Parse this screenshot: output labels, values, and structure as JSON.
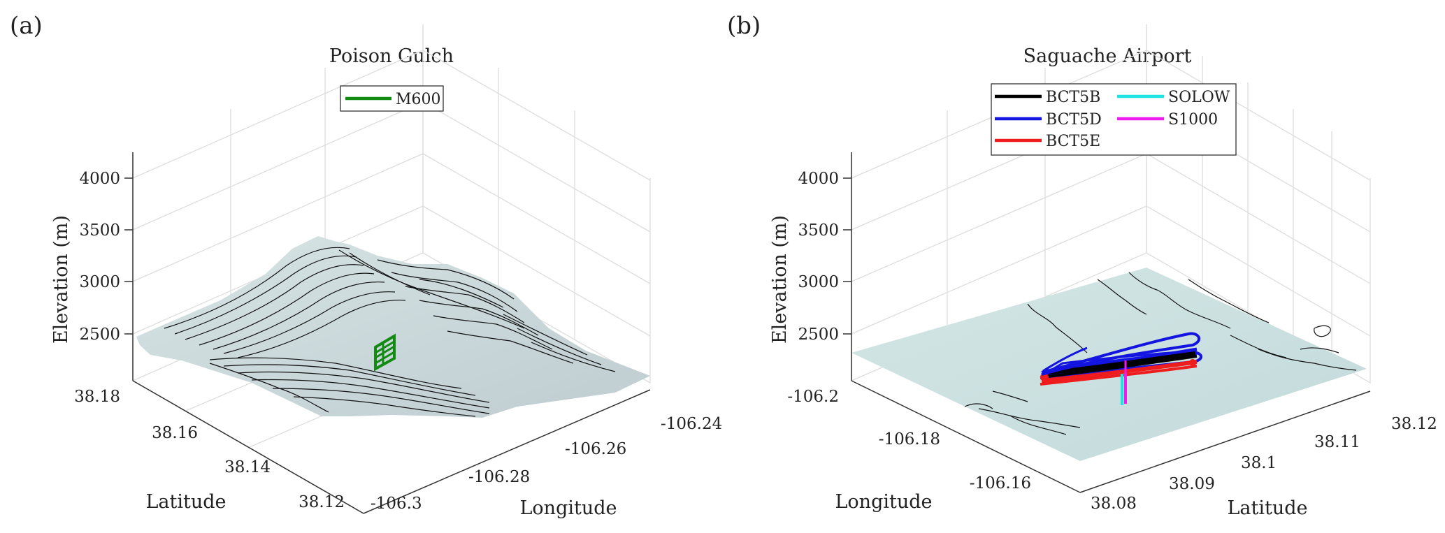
{
  "colors": {
    "terrain_a": "#c9d6d8",
    "terrain_b": "#cde0df",
    "M600": "#138b13",
    "BCT5B": "#000000",
    "BCT5D": "#1414e0",
    "BCT5E": "#ee1c1c",
    "SOLOW": "#1de3e3",
    "S1000": "#ee1cee"
  },
  "chart_data": [
    {
      "type": "surface",
      "panel_label": "(a)",
      "title": "Poison Gulch",
      "zlabel": "Elevation (m)",
      "xlabel": "Latitude",
      "ylabel": "Longitude",
      "zticks": [
        "2500",
        "3000",
        "3500",
        "4000"
      ],
      "lat_ticks": [
        "38.18",
        "38.16",
        "38.14",
        "38.12"
      ],
      "lon_ticks": [
        "-106.3",
        "-106.28",
        "-106.26",
        "-106.24"
      ],
      "zlim": [
        2300,
        4300
      ],
      "legend": {
        "position": "top",
        "entries": [
          {
            "name": "M600",
            "color_key": "M600"
          }
        ]
      }
    },
    {
      "type": "surface",
      "panel_label": "(b)",
      "title": "Saguache Airport",
      "zlabel": "Elevation (m)",
      "xlabel": "Longitude",
      "ylabel": "Latitude",
      "zticks": [
        "2500",
        "3000",
        "3500",
        "4000"
      ],
      "lon_ticks": [
        "-106.2",
        "-106.18",
        "-106.16"
      ],
      "lat_ticks": [
        "38.08",
        "38.09",
        "38.1",
        "38.11",
        "38.12"
      ],
      "zlim": [
        2300,
        4300
      ],
      "legend": {
        "position": "top",
        "entries": [
          {
            "name": "BCT5B",
            "color_key": "BCT5B"
          },
          {
            "name": "BCT5D",
            "color_key": "BCT5D"
          },
          {
            "name": "BCT5E",
            "color_key": "BCT5E"
          },
          {
            "name": "SOLOW",
            "color_key": "SOLOW"
          },
          {
            "name": "S1000",
            "color_key": "S1000"
          }
        ]
      }
    }
  ]
}
